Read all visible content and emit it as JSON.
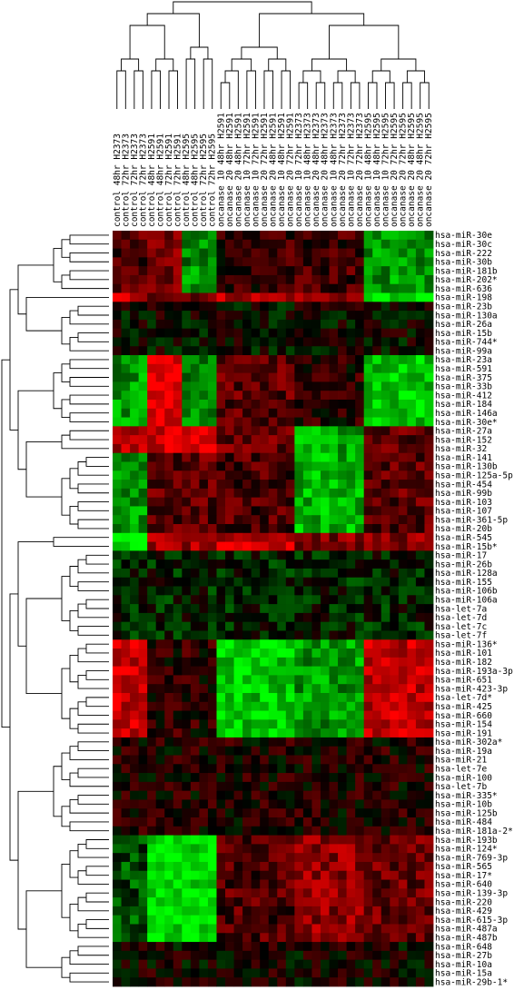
{
  "chart_data": {
    "type": "heatmap",
    "colors": {
      "low": "#00ff00",
      "mid": "#000000",
      "high": "#ff0000"
    },
    "columns": [
      "control 48hr H2373",
      "control 72hr H2373",
      "control 72hr H2373",
      "control 72hr H2373",
      "control 48hr H2591",
      "control 48hr H2591",
      "control 72hr H2591",
      "control 72hr H2591",
      "control 48hr H2595",
      "control 48hr H2595",
      "control 72hr H2595",
      "control 72hr H2595",
      "oncanase 10 48hr H2591",
      "oncanase 20 48hr H2591",
      "oncanase 20 48hr H2591",
      "oncanase 10 72hr H2591",
      "oncanase 10 72hr H2591",
      "oncanase 20 72hr H2591",
      "oncanase 20 48hr H2591",
      "oncanase 10 48hr H2591",
      "oncanase 20 72hr H2591",
      "oncanase 10 72hr H2373",
      "oncanase 10 48hr H2373",
      "oncanase 20 48hr H2373",
      "oncanase 20 48hr H2373",
      "oncanase 10 48hr H2373",
      "oncanase 20 72hr H2373",
      "oncanase 10 72hr H2373",
      "oncanase 20 72hr H2373",
      "oncanase 10 48hr H2595",
      "oncanase 10 48hr H2595",
      "oncanase 10 72hr H2595",
      "oncanase 20 72hr H2595",
      "oncanase 20 72hr H2595",
      "oncanase 20 48hr H2595",
      "oncanase 20 48hr H2595",
      "oncanase 20 72hr H2595"
    ],
    "rows": [
      "hsa-miR-30e",
      "hsa-miR-30c",
      "hsa-miR-222",
      "hsa-miR-30b",
      "hsa-miR-181b",
      "hsa-miR-202*",
      "hsa-miR-636",
      "hsa-miR-198",
      "hsa-miR-23b",
      "hsa-miR-130a",
      "hsa-miR-26a",
      "hsa-miR-15b",
      "hsa-miR-744*",
      "hsa-miR-99a",
      "hsa-miR-23a",
      "hsa-miR-591",
      "hsa-miR-375",
      "hsa-miR-33b",
      "hsa-miR-412",
      "hsa-miR-184",
      "hsa-miR-146a",
      "hsa-miR-30e*",
      "hsa-miR-27a",
      "hsa-miR-152",
      "hsa-miR-32",
      "hsa-miR-141",
      "hsa-miR-130b",
      "hsa-miR-125a-5p",
      "hsa-miR-454",
      "hsa-miR-99b",
      "hsa-miR-103",
      "hsa-miR-107",
      "hsa-miR-361-5p",
      "hsa-miR-20b",
      "hsa-miR-545",
      "hsa-miR-15b*",
      "hsa-miR-17",
      "hsa-miR-26b",
      "hsa-miR-128a",
      "hsa-miR-155",
      "hsa-miR-106b",
      "hsa-miR-106a",
      "hsa-let-7a",
      "hsa-let-7d",
      "hsa-let-7c",
      "hsa-let-7f",
      "hsa-miR-136*",
      "hsa-miR-101",
      "hsa-miR-182",
      "hsa-miR-193a-3p",
      "hsa-miR-651",
      "hsa-miR-423-3p",
      "hsa-let-7d*",
      "hsa-miR-425",
      "hsa-miR-660",
      "hsa-miR-154",
      "hsa-miR-191",
      "hsa-miR-302a*",
      "hsa-miR-19a",
      "hsa-miR-21",
      "hsa-let-7e",
      "hsa-miR-100",
      "hsa-let-7b",
      "hsa-miR-335*",
      "hsa-miR-10b",
      "hsa-miR-125b",
      "hsa-miR-484",
      "hsa-miR-181a-2*",
      "hsa-miR-193b",
      "hsa-miR-124*",
      "hsa-miR-769-3p",
      "hsa-miR-565",
      "hsa-miR-17*",
      "hsa-miR-640",
      "hsa-miR-139-3p",
      "hsa-miR-220",
      "hsa-miR-429",
      "hsa-miR-615-3p",
      "hsa-miR-487a",
      "hsa-miR-487b",
      "hsa-miR-648",
      "hsa-miR-27b",
      "hsa-miR-10a",
      "hsa-miR-15a",
      "hsa-miR-29b-1*"
    ],
    "blocks": [
      {
        "rows": [
          0,
          6
        ],
        "cols": [
          [
            0,
            3,
            0.3
          ],
          [
            4,
            7,
            0.45
          ],
          [
            8,
            11,
            -0.55
          ],
          [
            12,
            20,
            0.2
          ],
          [
            21,
            28,
            0.25
          ],
          [
            29,
            36,
            -0.6
          ]
        ]
      },
      {
        "rows": [
          7,
          7
        ],
        "cols": [
          [
            0,
            3,
            0.8
          ],
          [
            4,
            11,
            0.5
          ],
          [
            12,
            20,
            0.7
          ],
          [
            21,
            28,
            0.6
          ],
          [
            29,
            36,
            -0.95
          ]
        ]
      },
      {
        "rows": [
          8,
          13
        ],
        "cols": [
          [
            0,
            36,
            0.0
          ]
        ]
      },
      {
        "rows": [
          14,
          21
        ],
        "cols": [
          [
            0,
            3,
            -0.6
          ],
          [
            4,
            7,
            0.95
          ],
          [
            8,
            11,
            -0.5
          ],
          [
            12,
            20,
            0.35
          ],
          [
            21,
            28,
            0.15
          ],
          [
            29,
            36,
            -0.8
          ]
        ]
      },
      {
        "rows": [
          22,
          24
        ],
        "cols": [
          [
            0,
            3,
            0.7
          ],
          [
            4,
            11,
            0.85
          ],
          [
            12,
            20,
            0.4
          ],
          [
            21,
            28,
            -0.65
          ],
          [
            29,
            36,
            0.35
          ]
        ]
      },
      {
        "rows": [
          25,
          33
        ],
        "cols": [
          [
            0,
            3,
            -0.6
          ],
          [
            4,
            11,
            0.35
          ],
          [
            12,
            20,
            0.3
          ],
          [
            21,
            28,
            -0.7
          ],
          [
            29,
            36,
            0.35
          ]
        ]
      },
      {
        "rows": [
          34,
          35
        ],
        "cols": [
          [
            0,
            3,
            -0.95
          ],
          [
            4,
            11,
            0.6
          ],
          [
            12,
            20,
            0.75
          ],
          [
            21,
            28,
            0.5
          ],
          [
            29,
            36,
            0.55
          ]
        ]
      },
      {
        "rows": [
          36,
          45
        ],
        "cols": [
          [
            0,
            36,
            -0.12
          ]
        ]
      },
      {
        "rows": [
          46,
          56
        ],
        "cols": [
          [
            0,
            3,
            0.8
          ],
          [
            4,
            11,
            0.15
          ],
          [
            12,
            20,
            -0.8
          ],
          [
            21,
            28,
            -0.6
          ],
          [
            29,
            36,
            0.75
          ]
        ]
      },
      {
        "rows": [
          57,
          67
        ],
        "cols": [
          [
            0,
            36,
            0.1
          ]
        ]
      },
      {
        "rows": [
          68,
          79
        ],
        "cols": [
          [
            0,
            3,
            -0.3
          ],
          [
            4,
            11,
            -0.9
          ],
          [
            12,
            20,
            0.3
          ],
          [
            21,
            28,
            0.55
          ],
          [
            29,
            36,
            0.4
          ]
        ]
      },
      {
        "rows": [
          80,
          84
        ],
        "cols": [
          [
            0,
            36,
            0.05
          ]
        ]
      }
    ]
  }
}
